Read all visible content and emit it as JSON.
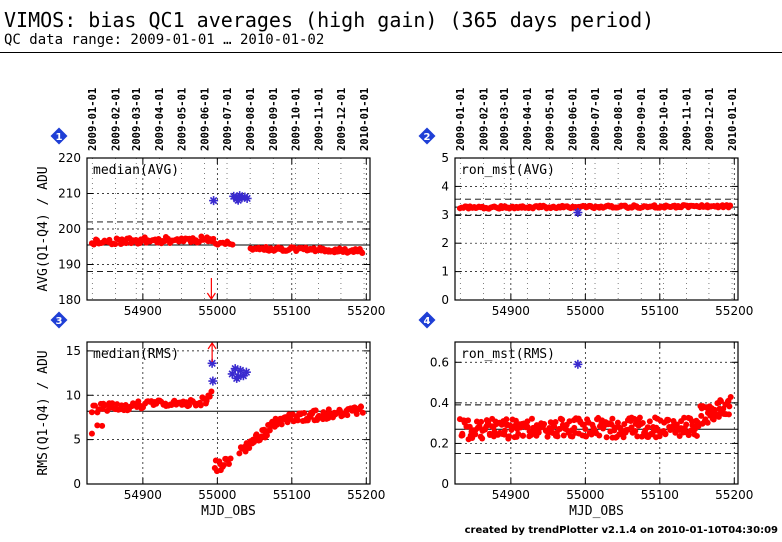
{
  "page": {
    "title": "VIMOS: bias QC1 averages (high gain) (365 days period)",
    "subtitle": "QC data range: 2009-01-01 … 2010-01-02",
    "footer": "created by trendPlotter v2.1.4 on 2010-01-10T04:30:09"
  },
  "colors": {
    "data": "#ff0000",
    "outlier": "#3a2bcf",
    "badge": "#1f3fd6",
    "grid": "#000000"
  },
  "chart_data": [
    {
      "type": "scatter",
      "panel": 1,
      "label": "median(AVG)",
      "xlabel": "",
      "ylabel": "AVG(Q1-Q4) / ADU",
      "xlim": [
        54825,
        55205
      ],
      "ylim": [
        180,
        220
      ],
      "yticks": [
        180,
        190,
        200,
        210,
        220
      ],
      "xticks": [
        54900,
        55000,
        55100,
        55200
      ],
      "date_ticks": [
        "2009-01-01",
        "2009-02-01",
        "2009-03-01",
        "2009-04-01",
        "2009-05-01",
        "2009-06-01",
        "2009-07-01",
        "2009-08-01",
        "2009-09-01",
        "2009-10-01",
        "2009-11-01",
        "2009-12-01",
        "2010-01-01"
      ],
      "date_tick_mjd": [
        54832,
        54863,
        54891,
        54922,
        54952,
        54983,
        55013,
        55044,
        55075,
        55105,
        55136,
        55166,
        55197
      ],
      "mean_line": 195.5,
      "sigma_lines": [
        188,
        202
      ],
      "segments": [
        {
          "x0": 54832,
          "x1": 54995,
          "y0": 196.4,
          "y1": 197.2,
          "n": 70,
          "jitter": 0.9,
          "seed": 11
        },
        {
          "x0": 54998,
          "x1": 55020,
          "y0": 196.0,
          "y1": 196.0,
          "n": 8,
          "jitter": 0.5,
          "seed": 12
        },
        {
          "x0": 55045,
          "x1": 55195,
          "y0": 194.6,
          "y1": 193.8,
          "n": 75,
          "jitter": 0.6,
          "seed": 13
        }
      ],
      "outliers": [
        {
          "x": 54995,
          "y": 208.0
        },
        {
          "x": 55022,
          "y": 209.2
        },
        {
          "x": 55026,
          "y": 208.5
        },
        {
          "x": 55030,
          "y": 209.4
        },
        {
          "x": 55033,
          "y": 208.8
        },
        {
          "x": 55037,
          "y": 209.0
        },
        {
          "x": 55040,
          "y": 208.6
        },
        {
          "x": 55028,
          "y": 208.1
        }
      ],
      "offscale_arrows": [
        {
          "x": 54992,
          "direction": "down"
        }
      ]
    },
    {
      "type": "scatter",
      "panel": 2,
      "label": "ron_mst(AVG)",
      "xlabel": "",
      "ylabel": "",
      "xlim": [
        54825,
        55205
      ],
      "ylim": [
        0,
        5
      ],
      "yticks": [
        0,
        1,
        2,
        3,
        4,
        5
      ],
      "xticks": [
        54900,
        55000,
        55100,
        55200
      ],
      "date_ticks": [
        "2009-01-01",
        "2009-02-01",
        "2009-03-01",
        "2009-04-01",
        "2009-05-01",
        "2009-06-01",
        "2009-07-01",
        "2009-08-01",
        "2009-09-01",
        "2009-10-01",
        "2009-11-01",
        "2009-12-01",
        "2010-01-01"
      ],
      "date_tick_mjd": [
        54832,
        54863,
        54891,
        54922,
        54952,
        54983,
        55013,
        55044,
        55075,
        55105,
        55136,
        55166,
        55197
      ],
      "mean_line": 3.27,
      "sigma_lines": [
        2.98,
        3.55
      ],
      "segments": [
        {
          "x0": 54832,
          "x1": 55195,
          "y0": 3.26,
          "y1": 3.3,
          "n": 160,
          "jitter": 0.05,
          "seed": 21
        }
      ],
      "outliers": [
        {
          "x": 54990,
          "y": 3.08
        }
      ],
      "offscale_arrows": []
    },
    {
      "type": "scatter",
      "panel": 3,
      "label": "median(RMS)",
      "xlabel": "MJD_OBS",
      "ylabel": "RMS(Q1-Q4) / ADU",
      "xlim": [
        54825,
        55205
      ],
      "ylim": [
        0,
        16
      ],
      "yticks": [
        0,
        5,
        10,
        15
      ],
      "xticks": [
        54900,
        55000,
        55100,
        55200
      ],
      "mean_line": 8.2,
      "sigma_lines": [],
      "segments": [
        {
          "x0": 54832,
          "x1": 54985,
          "y0": 8.5,
          "y1": 9.3,
          "n": 70,
          "jitter": 0.5,
          "seed": 31
        },
        {
          "x0": 54832,
          "x1": 54845,
          "y0": 6.0,
          "y1": 6.5,
          "n": 3,
          "jitter": 0.5,
          "seed": 32
        },
        {
          "x0": 54986,
          "x1": 54992,
          "y0": 9.5,
          "y1": 10.2,
          "n": 4,
          "jitter": 0.3,
          "seed": 33
        },
        {
          "x0": 54997,
          "x1": 55018,
          "y0": 2.0,
          "y1": 2.6,
          "n": 14,
          "jitter": 0.7,
          "seed": 34
        },
        {
          "x0": 55030,
          "x1": 55085,
          "y0": 3.5,
          "y1": 7.3,
          "n": 45,
          "jitter": 0.6,
          "seed": 35
        },
        {
          "x0": 55085,
          "x1": 55195,
          "y0": 7.3,
          "y1": 8.3,
          "n": 75,
          "jitter": 0.6,
          "seed": 36
        }
      ],
      "outliers": [
        {
          "x": 54993,
          "y": 13.6
        },
        {
          "x": 54994,
          "y": 11.6
        },
        {
          "x": 55020,
          "y": 12.4
        },
        {
          "x": 55024,
          "y": 13.0
        },
        {
          "x": 55028,
          "y": 12.1
        },
        {
          "x": 55031,
          "y": 12.8
        },
        {
          "x": 55035,
          "y": 12.2
        },
        {
          "x": 55039,
          "y": 12.6
        },
        {
          "x": 55026,
          "y": 11.9
        }
      ],
      "offscale_arrows": [
        {
          "x": 54993,
          "direction": "up"
        }
      ]
    },
    {
      "type": "scatter",
      "panel": 4,
      "label": "ron_mst(RMS)",
      "xlabel": "MJD_OBS",
      "ylabel": "",
      "xlim": [
        54825,
        55205
      ],
      "ylim": [
        0,
        0.7
      ],
      "yticks": [
        0,
        0.2,
        0.4,
        0.6
      ],
      "xticks": [
        54900,
        55000,
        55100,
        55200
      ],
      "mean_line": 0.27,
      "sigma_lines": [
        0.15,
        0.39
      ],
      "segments": [
        {
          "x0": 54832,
          "x1": 55150,
          "y0": 0.27,
          "y1": 0.28,
          "n": 260,
          "jitter": 0.05,
          "seed": 41
        },
        {
          "x0": 55150,
          "x1": 55195,
          "y0": 0.33,
          "y1": 0.38,
          "n": 45,
          "jitter": 0.05,
          "seed": 42
        }
      ],
      "outliers": [
        {
          "x": 54990,
          "y": 0.59
        }
      ],
      "offscale_arrows": []
    }
  ]
}
